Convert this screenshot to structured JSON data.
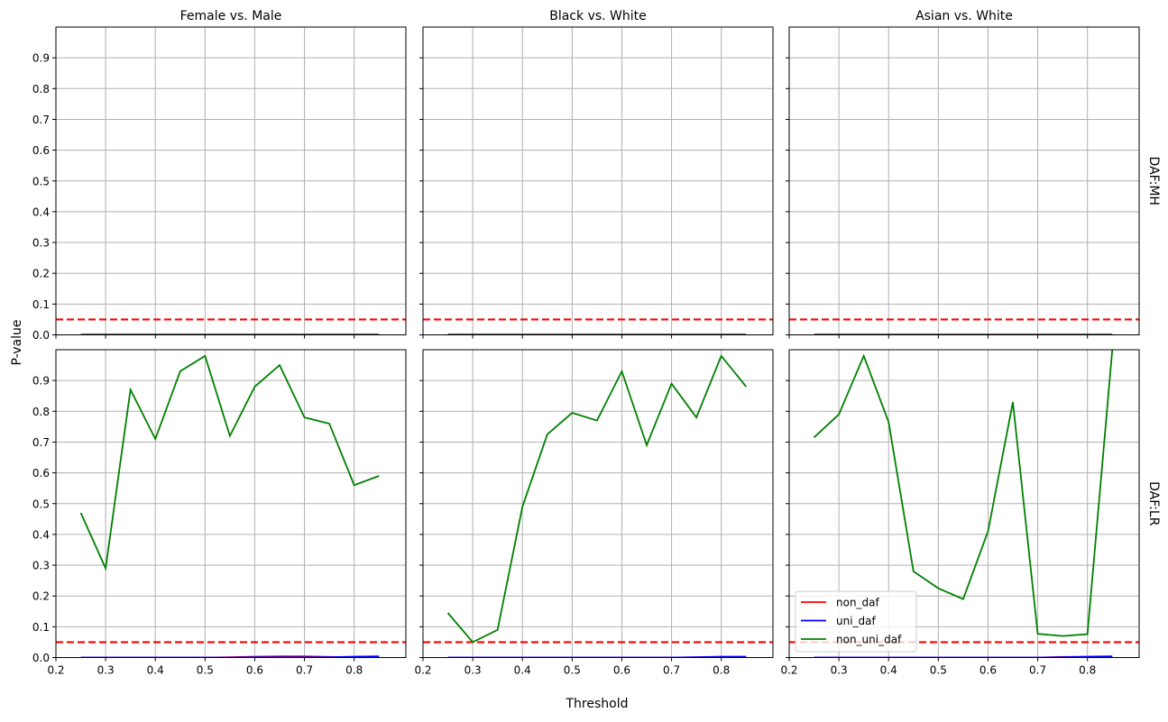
{
  "figure": {
    "xlabel": "Threshold",
    "ylabel": "P-value",
    "column_titles": [
      "Female vs. Male",
      "Black vs. White",
      "Asian vs. White"
    ],
    "row_labels": [
      "DAF:MH",
      "DAF:LR"
    ],
    "significance_line": {
      "value": 0.05,
      "color": "#ff0000",
      "style": "dashed"
    },
    "colors": {
      "non_daf": "#ff0000",
      "uni_daf": "#0000ff",
      "non_uni_daf": "#008000",
      "mh": "#000000",
      "grid": "#b0b0b0"
    },
    "legend": {
      "position": "lower left (DAF:LR, Asian vs. White)",
      "entries": [
        {
          "label": "non_daf",
          "color": "#ff0000"
        },
        {
          "label": "uni_daf",
          "color": "#0000ff"
        },
        {
          "label": "non_uni_daf",
          "color": "#008000"
        }
      ]
    }
  },
  "chart_data": {
    "type": "line",
    "title": "",
    "layout": "2x3 grid of subplots (rows: DAF:MH, DAF:LR; columns: group comparisons)",
    "xlabel": "Threshold",
    "ylabel": "P-value",
    "xlim": [
      0.2,
      0.9
    ],
    "ylim": [
      0.0,
      1.0
    ],
    "grid": true,
    "x": [
      0.25,
      0.3,
      0.35,
      0.4,
      0.45,
      0.5,
      0.55,
      0.6,
      0.65,
      0.7,
      0.75,
      0.8,
      0.85
    ],
    "x_ticks": [
      "0.2",
      "0.3",
      "0.4",
      "0.5",
      "0.6",
      "0.7",
      "0.8"
    ],
    "y_ticks": [
      "0.0",
      "0.1",
      "0.2",
      "0.3",
      "0.4",
      "0.5",
      "0.6",
      "0.7",
      "0.8",
      "0.9"
    ],
    "reference_line": {
      "y": 0.05,
      "color": "#ff0000",
      "style": "dashed"
    },
    "legend_entries": [
      "non_daf",
      "uni_daf",
      "non_uni_daf"
    ],
    "panels": [
      {
        "row": "DAF:MH",
        "column": "Female vs. Male",
        "series": [
          {
            "name": "p-value",
            "color": "#000000",
            "values": [
              0,
              0,
              0,
              0,
              0,
              0,
              0,
              0,
              0,
              0,
              0,
              0,
              0
            ]
          }
        ]
      },
      {
        "row": "DAF:MH",
        "column": "Black vs. White",
        "series": [
          {
            "name": "p-value",
            "color": "#000000",
            "values": [
              0,
              0,
              0,
              0,
              0,
              0,
              0,
              0,
              0,
              0,
              0,
              0,
              0
            ]
          }
        ]
      },
      {
        "row": "DAF:MH",
        "column": "Asian vs. White",
        "series": [
          {
            "name": "p-value",
            "color": "#000000",
            "values": [
              0,
              0,
              0,
              0,
              0,
              0,
              0,
              0,
              0,
              0,
              0,
              0,
              0
            ]
          }
        ]
      },
      {
        "row": "DAF:LR",
        "column": "Female vs. Male",
        "series": [
          {
            "name": "non_daf",
            "color": "#ff0000",
            "values": [
              0.0,
              0.0,
              0.0,
              0.0,
              0.0,
              0.0,
              0.001,
              0.003,
              0.004,
              0.004,
              0.002,
              0.001,
              0.001
            ]
          },
          {
            "name": "uni_daf",
            "color": "#0000ff",
            "values": [
              0.0,
              0.0,
              0.0,
              0.0,
              0.0,
              0.0,
              0.0,
              0.001,
              0.001,
              0.001,
              0.001,
              0.003,
              0.004
            ]
          },
          {
            "name": "non_uni_daf",
            "color": "#008000",
            "values": [
              0.47,
              0.29,
              0.87,
              0.71,
              0.93,
              0.98,
              0.72,
              0.88,
              0.95,
              0.78,
              0.76,
              0.56,
              0.59
            ]
          }
        ]
      },
      {
        "row": "DAF:LR",
        "column": "Black vs. White",
        "series": [
          {
            "name": "non_daf",
            "color": "#ff0000",
            "values": [
              0.0,
              0.0,
              0.0,
              0.0,
              0.0,
              0.0,
              0.0,
              0.0,
              0.0,
              0.0,
              0.001,
              0.003,
              0.002
            ]
          },
          {
            "name": "uni_daf",
            "color": "#0000ff",
            "values": [
              0.0,
              0.0,
              0.0,
              0.0,
              0.0,
              0.0,
              0.0,
              0.0,
              0.0,
              0.0,
              0.001,
              0.002,
              0.003
            ]
          },
          {
            "name": "non_uni_daf",
            "color": "#008000",
            "values": [
              0.145,
              0.05,
              0.09,
              0.49,
              0.725,
              0.795,
              0.77,
              0.93,
              0.69,
              0.89,
              0.78,
              0.98,
              0.88
            ]
          }
        ]
      },
      {
        "row": "DAF:LR",
        "column": "Asian vs. White",
        "series": [
          {
            "name": "non_daf",
            "color": "#ff0000",
            "values": [
              0.0,
              0.0,
              0.0,
              0.0,
              0.0,
              0.0,
              0.0,
              0.0,
              0.0,
              0.0,
              0.002,
              0.002,
              0.001
            ]
          },
          {
            "name": "uni_daf",
            "color": "#0000ff",
            "values": [
              0.0,
              0.0,
              0.0,
              0.0,
              0.0,
              0.0,
              0.0,
              0.0,
              0.0,
              0.0,
              0.001,
              0.003,
              0.004
            ]
          },
          {
            "name": "non_uni_daf",
            "color": "#008000",
            "values": [
              0.715,
              0.79,
              0.98,
              0.765,
              0.28,
              0.225,
              0.19,
              0.41,
              0.83,
              0.077,
              0.07,
              0.076,
              1.0
            ]
          }
        ]
      }
    ]
  }
}
